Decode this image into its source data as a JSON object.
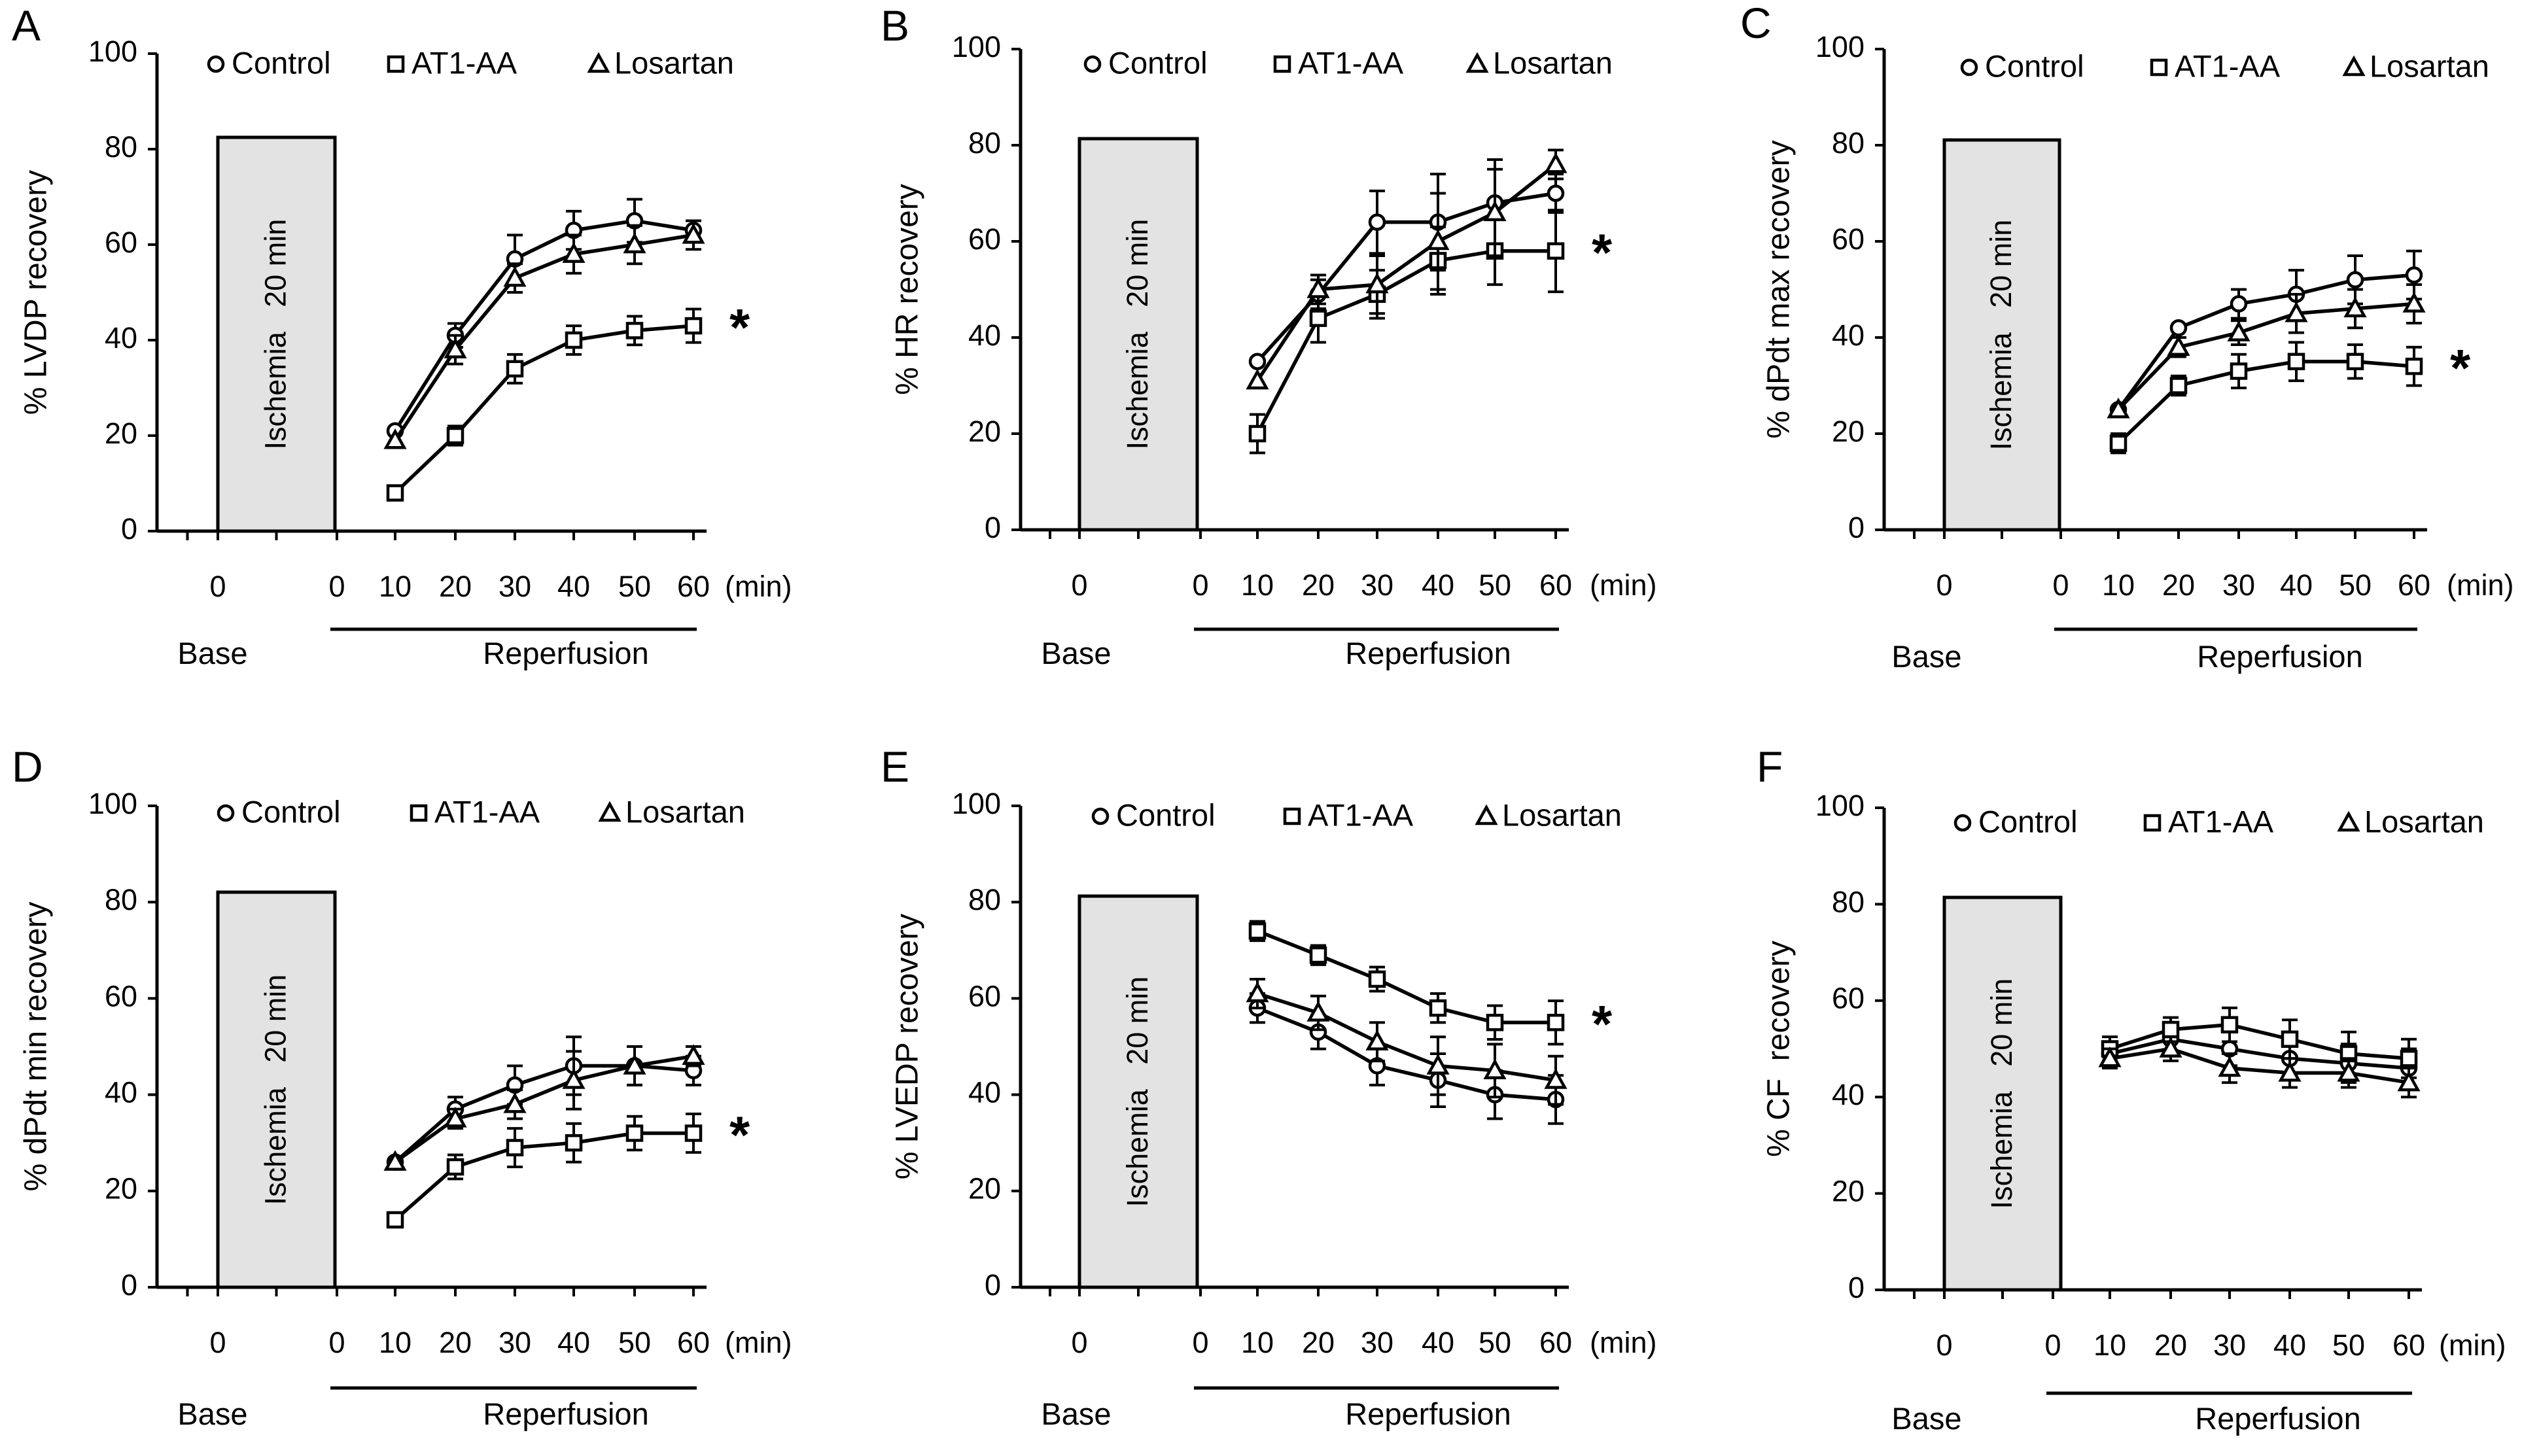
{
  "chart_data": [
    {
      "panel": "A",
      "type": "line",
      "ylabel": "% LVDP recovery",
      "ylim": [
        0,
        100
      ],
      "yticks": [
        0,
        20,
        40,
        60,
        80,
        100
      ],
      "x": [
        10,
        20,
        30,
        40,
        50,
        60
      ],
      "series": [
        {
          "name": "Control",
          "marker": "circle",
          "values": [
            21,
            41,
            57,
            63,
            65,
            63
          ],
          "errors": [
            1.5,
            2.5,
            5,
            4,
            4.5,
            1.5
          ]
        },
        {
          "name": "AT1-AA",
          "marker": "square",
          "values": [
            8,
            20,
            34,
            40,
            42,
            43
          ],
          "errors": [
            1.5,
            2,
            3,
            3,
            3,
            3.5
          ]
        },
        {
          "name": "Losartan",
          "marker": "triangle",
          "values": [
            19,
            38,
            53,
            58,
            60,
            62
          ],
          "errors": [
            1.5,
            3,
            3,
            4,
            4,
            3
          ]
        }
      ],
      "significance": "*",
      "ischemia_label": "Ischemia   20 min"
    },
    {
      "panel": "B",
      "type": "line",
      "ylabel": "% HR recovery",
      "ylim": [
        0,
        100
      ],
      "yticks": [
        0,
        20,
        40,
        60,
        80,
        100
      ],
      "x": [
        10,
        20,
        30,
        40,
        50,
        60
      ],
      "series": [
        {
          "name": "Control",
          "marker": "circle",
          "values": [
            35,
            49,
            64,
            64,
            68,
            70
          ],
          "errors": [
            1.5,
            3,
            6.5,
            10,
            9,
            4
          ]
        },
        {
          "name": "AT1-AA",
          "marker": "square",
          "values": [
            20,
            44,
            49,
            56,
            58,
            58
          ],
          "errors": [
            4,
            5,
            5,
            7,
            7,
            8.5
          ]
        },
        {
          "name": "Losartan",
          "marker": "triangle",
          "values": [
            31,
            50,
            51,
            60,
            66,
            76
          ],
          "errors": [
            1.5,
            3,
            6,
            10,
            9,
            3
          ]
        }
      ],
      "significance": "*",
      "ischemia_label": "Ischemia   20 min"
    },
    {
      "panel": "C",
      "type": "line",
      "ylabel": "% dPdt max recovery",
      "ylim": [
        0,
        100
      ],
      "yticks": [
        0,
        20,
        40,
        60,
        80,
        100
      ],
      "x": [
        10,
        20,
        30,
        40,
        50,
        60
      ],
      "series": [
        {
          "name": "Control",
          "marker": "circle",
          "values": [
            25,
            42,
            47,
            49,
            52,
            53
          ],
          "errors": [
            1.5,
            1.5,
            3,
            5,
            5,
            5
          ]
        },
        {
          "name": "AT1-AA",
          "marker": "square",
          "values": [
            18,
            30,
            33,
            35,
            35,
            34
          ],
          "errors": [
            2,
            2,
            3.5,
            4,
            3.5,
            4
          ]
        },
        {
          "name": "Losartan",
          "marker": "triangle",
          "values": [
            25,
            38,
            41,
            45,
            46,
            47
          ],
          "errors": [
            1.5,
            2,
            2.5,
            4,
            4,
            4
          ]
        }
      ],
      "significance": "*",
      "ischemia_label": "Ischemia   20 min"
    },
    {
      "panel": "D",
      "type": "line",
      "ylabel": "% dPdt min recovery",
      "ylim": [
        0,
        100
      ],
      "yticks": [
        0,
        20,
        40,
        60,
        80,
        100
      ],
      "x": [
        10,
        20,
        30,
        40,
        50,
        60
      ],
      "series": [
        {
          "name": "Control",
          "marker": "circle",
          "values": [
            26,
            37,
            42,
            46,
            46,
            45
          ],
          "errors": [
            1.5,
            2.5,
            4,
            6,
            4,
            3
          ]
        },
        {
          "name": "AT1-AA",
          "marker": "square",
          "values": [
            14,
            25,
            29,
            30,
            32,
            32
          ],
          "errors": [
            1.5,
            2.5,
            4,
            4,
            3.5,
            4
          ]
        },
        {
          "name": "Losartan",
          "marker": "triangle",
          "values": [
            26,
            35,
            38,
            43,
            46,
            48
          ],
          "errors": [
            1.5,
            2,
            3,
            6,
            4,
            2
          ]
        }
      ],
      "significance": "*",
      "ischemia_label": "Ischemia   20 min"
    },
    {
      "panel": "E",
      "type": "line",
      "ylabel": "% LVEDP recovery",
      "ylim": [
        0,
        100
      ],
      "yticks": [
        0,
        20,
        40,
        60,
        80,
        100
      ],
      "x": [
        10,
        20,
        30,
        40,
        50,
        60
      ],
      "series": [
        {
          "name": "Control",
          "marker": "circle",
          "values": [
            58,
            53,
            46,
            43,
            40,
            39
          ],
          "errors": [
            3,
            3.5,
            4,
            5.5,
            5,
            5
          ]
        },
        {
          "name": "AT1-AA",
          "marker": "square",
          "values": [
            74,
            69,
            64,
            58,
            55,
            55
          ],
          "errors": [
            2,
            2,
            2.5,
            3,
            3.5,
            4.5
          ]
        },
        {
          "name": "Losartan",
          "marker": "triangle",
          "values": [
            61,
            57,
            51,
            46,
            45,
            43
          ],
          "errors": [
            3,
            3.5,
            4,
            6,
            5.5,
            5
          ]
        }
      ],
      "significance": "*",
      "ischemia_label": "Ischemia   20 min"
    },
    {
      "panel": "F",
      "type": "line",
      "ylabel": "% CF  recovery",
      "ylim": [
        0,
        100
      ],
      "yticks": [
        0,
        20,
        40,
        60,
        80,
        100
      ],
      "x": [
        10,
        20,
        30,
        40,
        50,
        60
      ],
      "series": [
        {
          "name": "Control",
          "marker": "circle",
          "values": [
            49,
            52,
            50,
            48,
            47,
            46
          ],
          "errors": [
            2.5,
            3,
            3.5,
            4,
            4,
            4
          ]
        },
        {
          "name": "AT1-AA",
          "marker": "square",
          "values": [
            50,
            54,
            55,
            52,
            49,
            48
          ],
          "errors": [
            2.5,
            2.5,
            3.5,
            4,
            4.5,
            4
          ]
        },
        {
          "name": "Losartan",
          "marker": "triangle",
          "values": [
            48,
            50,
            46,
            45,
            45,
            43
          ],
          "errors": [
            2,
            2.5,
            3,
            3,
            3,
            3
          ]
        }
      ],
      "significance": "",
      "ischemia_label": "Ischemia   20 min"
    }
  ],
  "xaxis": {
    "base_tick": "0",
    "reperfusion_ticks": [
      "0",
      "10",
      "20",
      "30",
      "40",
      "50",
      "60"
    ],
    "unit": "(min)",
    "base_label": "Base",
    "reperfusion_label": "Reperfusion"
  }
}
